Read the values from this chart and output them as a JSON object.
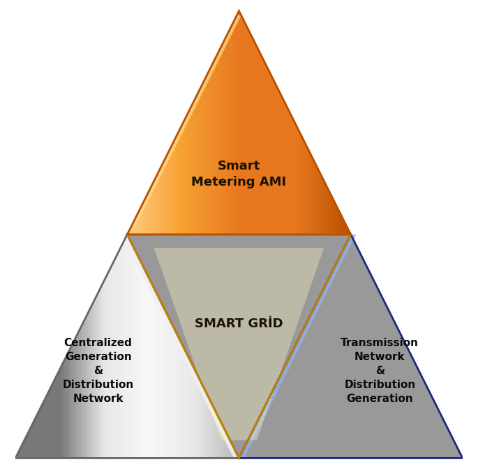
{
  "bg_color": "#ffffff",
  "orange_mid": "#e87820",
  "orange_light": "#f5a030",
  "orange_bright": "#ffcc80",
  "orange_dark": "#b85000",
  "yellow_mid": "#f0b800",
  "yellow_light": "#ffe040",
  "yellow_bright": "#fff5a0",
  "yellow_dark": "#c08000",
  "gray_mid": "#b8b8b8",
  "gray_light": "#e8e8e8",
  "gray_bright": "#f8f8f8",
  "gray_dark": "#787878",
  "blue_mid": "#3a5fb0",
  "blue_light": "#5878c8",
  "blue_bright": "#8090d0",
  "blue_dark": "#1a2880",
  "label_color": "#1a1200",
  "label_color_dark": "#0a0a0a",
  "text_orange": "Smart\nMetering AMI",
  "text_yellow": "SMART GRİD",
  "text_gray": "Centralized\nGeneration\n&\nDistribution\nNetwork",
  "text_blue": "Transmission\nNetwork\n&\nDistribution\nGeneration",
  "fontsize_large": 13,
  "fontsize_small": 11
}
